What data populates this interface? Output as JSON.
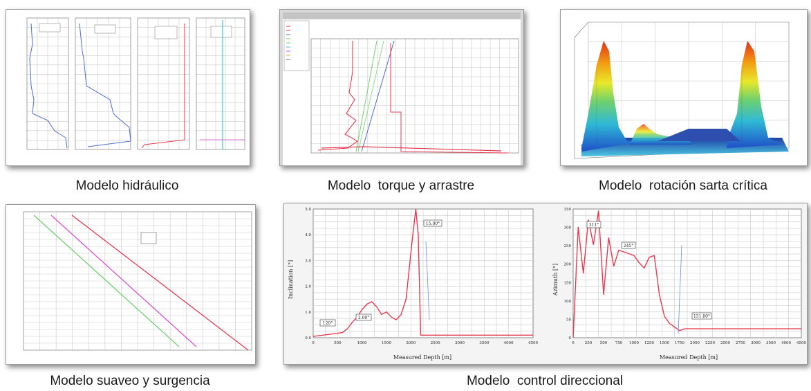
{
  "captions": {
    "hydraulic": "Modelo hidráulico",
    "torque": "Modelo  torque y arrastre",
    "rotation": "Modelo  rotación sarta crítica",
    "swab": "Modelo suaveo y surgencia",
    "directional": "Modelo  control direccional"
  },
  "directional": {
    "left": {
      "ylabel": "Inclination [°]",
      "xlabel": "Measured Depth [m]",
      "yticks": [
        "0.0",
        "1.0",
        "2.0",
        "3.0",
        "4.0",
        "5.0"
      ],
      "xticks": [
        "0",
        "500",
        "1000",
        "1500",
        "2000",
        "2500",
        "3000",
        "3500",
        "4000",
        "4500"
      ],
      "callouts": [
        "120°",
        "2.00°",
        "15.00°"
      ],
      "ylim": [
        0,
        5
      ],
      "xlim": [
        0,
        4500
      ],
      "x": [
        0,
        200,
        400,
        600,
        700,
        800,
        900,
        1000,
        1100,
        1200,
        1300,
        1400,
        1500,
        1600,
        1700,
        1800,
        1900,
        2000,
        2050,
        2100,
        2150,
        2200,
        4500
      ],
      "y": [
        0.05,
        0.1,
        0.15,
        0.2,
        0.35,
        0.6,
        0.8,
        1.1,
        1.3,
        1.4,
        1.2,
        0.9,
        1.0,
        0.8,
        0.7,
        0.9,
        1.5,
        3.3,
        4.2,
        5.0,
        4.0,
        0.1,
        0.1
      ]
    },
    "right": {
      "ylabel": "Azimuth [°]",
      "xlabel": "Measured Depth [m]",
      "yticks": [
        "0",
        "50",
        "100",
        "150",
        "200",
        "250",
        "300",
        "350"
      ],
      "xticks": [
        "0",
        "250",
        "500",
        "750",
        "1000",
        "1250",
        "1500",
        "1750",
        "2000",
        "2250",
        "2500",
        "2750",
        "3000",
        "3500",
        "4000",
        "4500"
      ],
      "callouts": [
        "311°",
        "245°",
        "151.00°"
      ],
      "ylim": [
        0,
        360
      ],
      "xlim": [
        0,
        4500
      ],
      "x": [
        0,
        100,
        200,
        300,
        400,
        500,
        600,
        700,
        800,
        900,
        1000,
        1100,
        1200,
        1300,
        1400,
        1500,
        1600,
        1700,
        1800,
        1900,
        2000,
        2100,
        2200,
        4500
      ],
      "y": [
        0,
        310,
        180,
        330,
        260,
        355,
        120,
        280,
        200,
        245,
        240,
        235,
        230,
        210,
        195,
        225,
        230,
        120,
        60,
        40,
        30,
        20,
        25,
        25
      ]
    }
  },
  "colors": {
    "red_curve": "#e63950",
    "blue_curve": "#4a6cd4",
    "green_curve": "#6fd06f",
    "magenta_curve": "#d94fd4",
    "panel_bg": "#f4f4f4"
  }
}
